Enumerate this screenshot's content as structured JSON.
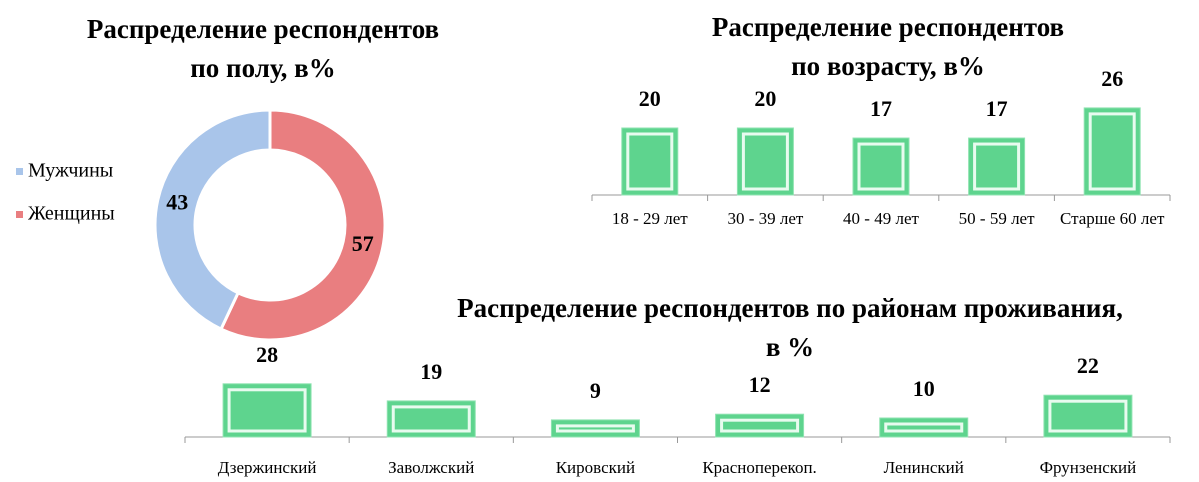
{
  "chart_data": [
    {
      "type": "donut",
      "title": [
        "Распределение респондентов",
        "по полу, в%"
      ],
      "categories": [
        "Мужчины",
        "Женщины"
      ],
      "values": [
        43,
        57
      ],
      "colors": [
        "#a9c5ea",
        "#e97e80"
      ],
      "legend": "left"
    },
    {
      "type": "bar",
      "title": [
        "Распределение респондентов",
        "по возрасту, в%"
      ],
      "categories": [
        "18 - 29 лет",
        "30 - 39 лет",
        "40 - 49 лет",
        "50 - 59 лет",
        "Старше 60 лет"
      ],
      "values": [
        20,
        20,
        17,
        17,
        26
      ],
      "color": "#5ed48e"
    },
    {
      "type": "bar",
      "title": [
        "Распределение респондентов по районам проживания,",
        "в %"
      ],
      "categories": [
        "Дзержинский",
        "Заволжский",
        "Кировский",
        "Красноперекоп.",
        "Ленинский",
        "Фрунзенский"
      ],
      "values": [
        28,
        19,
        9,
        12,
        10,
        22
      ],
      "color": "#5ed48e"
    }
  ]
}
